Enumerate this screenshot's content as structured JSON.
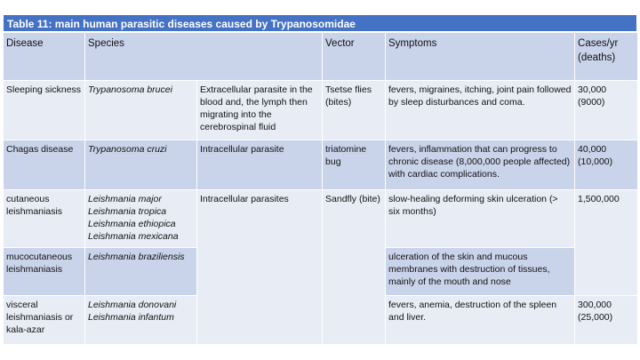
{
  "table": {
    "title": "Table 11: main human parasitic diseases caused by Trypanosomidae",
    "headers": {
      "disease": "Disease",
      "species": "Species",
      "vector": "Vector",
      "symptoms": "Symptoms",
      "cases": "Cases/yr (deaths)"
    },
    "rows": [
      {
        "disease": "Sleeping sickness",
        "species": [
          "Trypanosoma brucei"
        ],
        "location": "Extracellular parasite in the blood and, the lymph then migrating into the cerebrospinal fluid",
        "vector": "Tsetse flies (bites)",
        "symptoms": "fevers, migraines, itching, joint pain followed by sleep disturbances and coma.",
        "cases": [
          "30,000",
          "(9000)"
        ]
      },
      {
        "disease": "Chagas disease",
        "species": [
          "Trypanosoma cruzi"
        ],
        "location": "Intracellular parasite",
        "vector": "triatomine bug",
        "symptoms": "fevers, inflammation that can progress to chronic disease (8,000,000 people affected) with cardiac complications.",
        "cases": [
          "40,000",
          "(10,000)"
        ]
      },
      {
        "disease": "cutaneous leishmaniasis",
        "species": [
          "Leishmania major",
          "Leishmania tropica",
          "Leishmania ethiopica",
          "Leishmania mexicana"
        ],
        "location": "Intracellular parasites",
        "vector": "Sandfly (bite)",
        "symptoms": "slow-healing deforming skin ulceration (> six months)",
        "cases": [
          "1,500,000"
        ]
      },
      {
        "disease": "mucocutaneous leishmaniasis",
        "species": [
          "Leishmania braziliensis"
        ],
        "symptoms": "ulceration of the skin and mucous membranes with destruction of tissues, mainly of the mouth and nose"
      },
      {
        "disease": "visceral leishmaniasis or kala-azar",
        "species": [
          "Leishmania donovani",
          "Leishmania infantum"
        ],
        "symptoms": "fevers, anemia, destruction of the spleen and liver.",
        "cases": [
          "300,000",
          "(25,000)"
        ]
      }
    ]
  }
}
